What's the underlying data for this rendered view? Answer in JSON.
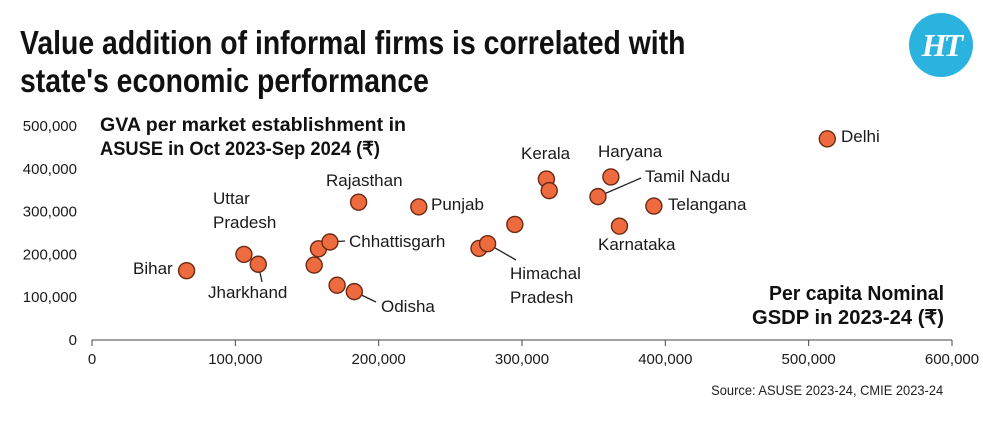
{
  "title": "Value addition of informal firms is correlated with state's economic performance",
  "source": "Source: ASUSE 2023-24, CMIE 2023-24",
  "logo": {
    "text": "HT",
    "color": "#2bb3e0"
  },
  "colors": {
    "point": "#ee6a3f",
    "point_stroke": "#6b2a14",
    "text": "#1a1a1a",
    "axis": "#444444"
  },
  "chart_data": {
    "type": "scatter",
    "ylabel": [
      "GVA per market establishment in",
      "ASUSE in Oct 2023-Sep 2024 (₹)"
    ],
    "xlabel": [
      "Per capita Nominal",
      "GSDP in 2023-24 (₹)"
    ],
    "xlim": [
      0,
      600000
    ],
    "ylim": [
      0,
      500000
    ],
    "x_ticks": [
      {
        "value": 0,
        "label": "0"
      },
      {
        "value": 100000,
        "label": "100,000"
      },
      {
        "value": 200000,
        "label": "200,000"
      },
      {
        "value": 300000,
        "label": "300,000"
      },
      {
        "value": 400000,
        "label": "400,000"
      },
      {
        "value": 500000,
        "label": "500,000"
      },
      {
        "value": 600000,
        "label": "600,000"
      }
    ],
    "y_ticks": [
      {
        "value": 0,
        "label": "0"
      },
      {
        "value": 100000,
        "label": "100,000"
      },
      {
        "value": 200000,
        "label": "200,000"
      },
      {
        "value": 300000,
        "label": "300,000"
      },
      {
        "value": 400000,
        "label": "400,000"
      },
      {
        "value": 500000,
        "label": "500,000"
      }
    ],
    "grid": false,
    "points": [
      {
        "name": "Bihar",
        "x": 66000,
        "y": 162000
      },
      {
        "name": "Uttar Pradesh",
        "x": 106000,
        "y": 200000
      },
      {
        "name": "Jharkhand",
        "x": 116000,
        "y": 177000
      },
      {
        "name": "",
        "x": 155000,
        "y": 175000
      },
      {
        "name": "",
        "x": 158000,
        "y": 213000
      },
      {
        "name": "Chhattisgarh",
        "x": 166000,
        "y": 229000
      },
      {
        "name": "",
        "x": 171000,
        "y": 128000
      },
      {
        "name": "Odisha",
        "x": 183000,
        "y": 113000
      },
      {
        "name": "Rajasthan",
        "x": 186000,
        "y": 322000
      },
      {
        "name": "Punjab",
        "x": 228000,
        "y": 311000
      },
      {
        "name": "",
        "x": 270000,
        "y": 214000
      },
      {
        "name": "Himachal Pradesh",
        "x": 276000,
        "y": 225000
      },
      {
        "name": "",
        "x": 295000,
        "y": 270000
      },
      {
        "name": "Kerala",
        "x": 317000,
        "y": 376000
      },
      {
        "name": "",
        "x": 319000,
        "y": 349000
      },
      {
        "name": "Tamil Nadu",
        "x": 353000,
        "y": 335000
      },
      {
        "name": "Haryana",
        "x": 362000,
        "y": 381000
      },
      {
        "name": "Karnataka",
        "x": 368000,
        "y": 266000
      },
      {
        "name": "Telangana",
        "x": 392000,
        "y": 313000
      },
      {
        "name": "Delhi",
        "x": 513000,
        "y": 470000
      }
    ]
  }
}
